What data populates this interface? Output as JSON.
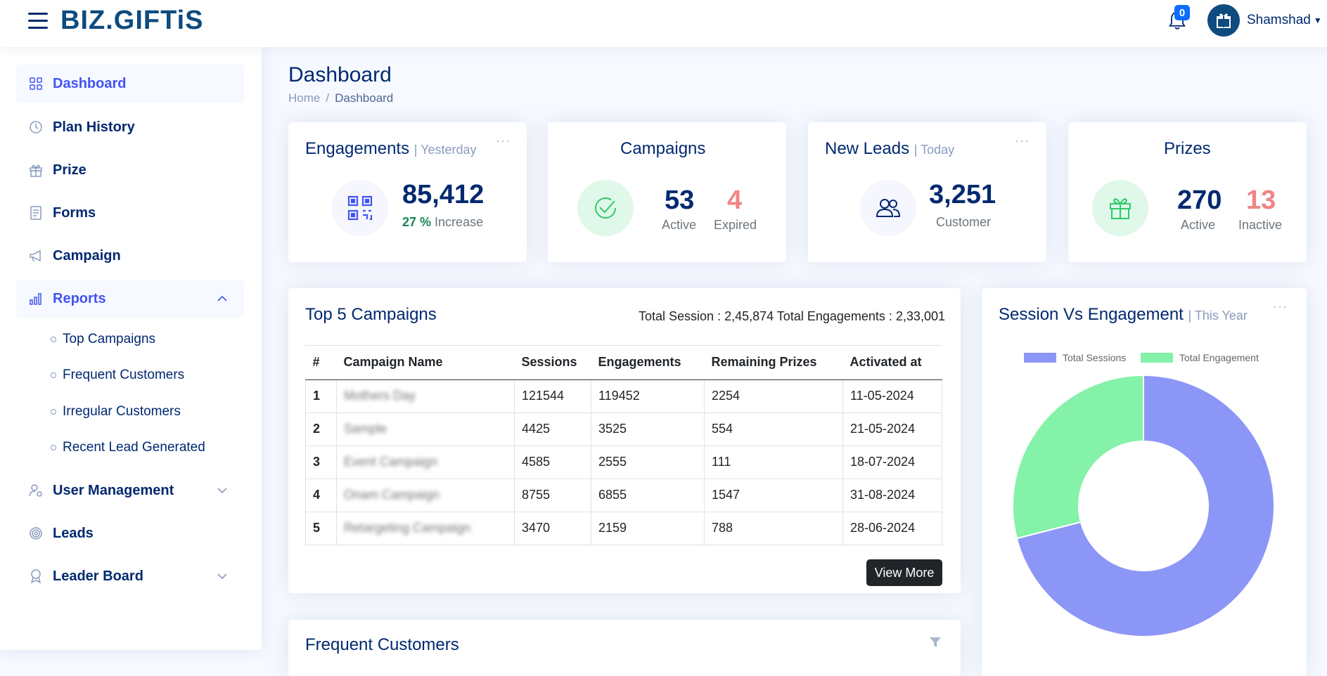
{
  "header": {
    "logo": "BIZ.GIFTiS",
    "notifications_count": "0",
    "user_name": "Shamshad"
  },
  "sidebar": {
    "items": [
      {
        "label": "Dashboard",
        "icon": "grid-icon"
      },
      {
        "label": "Plan History",
        "icon": "clock-icon"
      },
      {
        "label": "Prize",
        "icon": "gift-icon"
      },
      {
        "label": "Forms",
        "icon": "form-icon"
      },
      {
        "label": "Campaign",
        "icon": "megaphone-icon"
      },
      {
        "label": "Reports",
        "icon": "bar-chart-icon"
      },
      {
        "label": "User Management",
        "icon": "user-gear-icon"
      },
      {
        "label": "Leads",
        "icon": "target-icon"
      },
      {
        "label": "Leader Board",
        "icon": "award-icon"
      }
    ],
    "reports_sub": [
      "Top Campaigns",
      "Frequent Customers",
      "Irregular Customers",
      "Recent Lead Generated"
    ]
  },
  "page": {
    "title": "Dashboard",
    "breadcrumb_home": "Home",
    "breadcrumb_sep": "/",
    "breadcrumb_current": "Dashboard"
  },
  "cards": {
    "engagements": {
      "title": "Engagements",
      "sub": "| Yesterday",
      "value": "85,412",
      "pct": "27 %",
      "pct_label": "Increase"
    },
    "campaigns": {
      "title": "Campaigns",
      "active": "53",
      "active_label": "Active",
      "expired": "4",
      "expired_label": "Expired"
    },
    "leads": {
      "title": "New Leads",
      "sub": "| Today",
      "value": "3,251",
      "label": "Customer"
    },
    "prizes": {
      "title": "Prizes",
      "active": "270",
      "active_label": "Active",
      "inactive": "13",
      "inactive_label": "Inactive"
    },
    "menu_dots": "···"
  },
  "top_campaigns": {
    "title": "Top 5 Campaigns",
    "totals": "Total Session : 2,45,874 Total Engagements : 2,33,001",
    "headers": [
      "#",
      "Campaign Name",
      "Sessions",
      "Engagements",
      "Remaining Prizes",
      "Activated at"
    ],
    "rows": [
      {
        "n": "1",
        "name": "Mothers Day",
        "sessions": "121544",
        "engagements": "119452",
        "prizes": "2254",
        "date": "11-05-2024"
      },
      {
        "n": "2",
        "name": "Sample",
        "sessions": "4425",
        "engagements": "3525",
        "prizes": "554",
        "date": "21-05-2024"
      },
      {
        "n": "3",
        "name": "Event Campaign",
        "sessions": "4585",
        "engagements": "2555",
        "prizes": "111",
        "date": "18-07-2024"
      },
      {
        "n": "4",
        "name": "Onam Campaign",
        "sessions": "8755",
        "engagements": "6855",
        "prizes": "1547",
        "date": "31-08-2024"
      },
      {
        "n": "5",
        "name": "Retargeting Campaign",
        "sessions": "3470",
        "engagements": "2159",
        "prizes": "788",
        "date": "28-06-2024"
      }
    ],
    "view_more": "View More"
  },
  "frequent_customers": {
    "title": "Frequent Customers"
  },
  "session_chart": {
    "title": "Session Vs Engagement",
    "sub": "| This Year"
  },
  "chart_data": {
    "type": "pie",
    "categories": [
      "Total Sessions",
      "Total Engagement"
    ],
    "values": [
      71,
      29
    ],
    "colors": [
      "#8c96f7",
      "#84f2a8"
    ],
    "donut": true,
    "legend": "top"
  }
}
